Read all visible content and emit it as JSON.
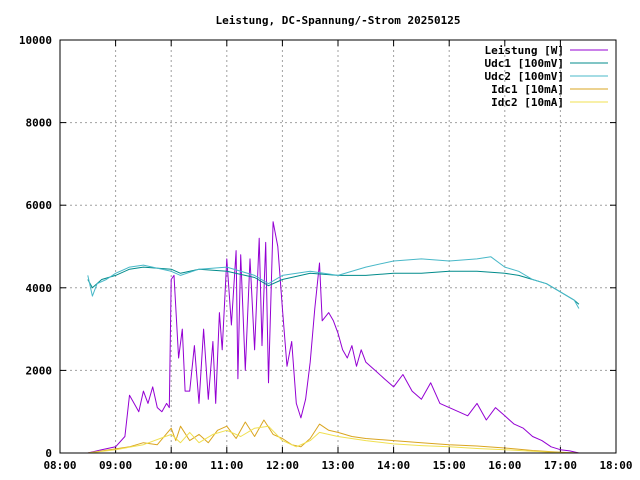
{
  "chart_data": {
    "type": "line",
    "title": "Leistung, DC-Spannung/-Strom 20250125",
    "xlabel": "",
    "ylabel": "",
    "xlim": [
      "08:00",
      "18:00"
    ],
    "ylim": [
      0,
      10000
    ],
    "x_ticks": [
      "08:00",
      "09:00",
      "10:00",
      "11:00",
      "12:00",
      "13:00",
      "14:00",
      "15:00",
      "16:00",
      "17:00",
      "18:00"
    ],
    "y_ticks": [
      0,
      2000,
      4000,
      6000,
      8000,
      10000
    ],
    "grid": true,
    "legend_position": "top-right",
    "series": [
      {
        "name": "Leistung [W]",
        "color": "#9400d3",
        "points": [
          [
            "08:30",
            0
          ],
          [
            "08:45",
            80
          ],
          [
            "09:00",
            150
          ],
          [
            "09:10",
            400
          ],
          [
            "09:15",
            1400
          ],
          [
            "09:20",
            1200
          ],
          [
            "09:25",
            1000
          ],
          [
            "09:30",
            1500
          ],
          [
            "09:35",
            1200
          ],
          [
            "09:40",
            1600
          ],
          [
            "09:45",
            1100
          ],
          [
            "09:50",
            1000
          ],
          [
            "09:55",
            1200
          ],
          [
            "09:58",
            1100
          ],
          [
            "10:00",
            4200
          ],
          [
            "10:03",
            4300
          ],
          [
            "10:08",
            2300
          ],
          [
            "10:12",
            3000
          ],
          [
            "10:15",
            1500
          ],
          [
            "10:20",
            1500
          ],
          [
            "10:25",
            2600
          ],
          [
            "10:30",
            1200
          ],
          [
            "10:35",
            3000
          ],
          [
            "10:40",
            1300
          ],
          [
            "10:45",
            2700
          ],
          [
            "10:48",
            1200
          ],
          [
            "10:52",
            3400
          ],
          [
            "10:55",
            2500
          ],
          [
            "11:00",
            4700
          ],
          [
            "11:05",
            3100
          ],
          [
            "11:10",
            4900
          ],
          [
            "11:12",
            1800
          ],
          [
            "11:15",
            4800
          ],
          [
            "11:20",
            2000
          ],
          [
            "11:25",
            4700
          ],
          [
            "11:30",
            2500
          ],
          [
            "11:35",
            5200
          ],
          [
            "11:38",
            2600
          ],
          [
            "11:42",
            5100
          ],
          [
            "11:45",
            1700
          ],
          [
            "11:50",
            5600
          ],
          [
            "11:55",
            5000
          ],
          [
            "12:00",
            3500
          ],
          [
            "12:05",
            2100
          ],
          [
            "12:10",
            2700
          ],
          [
            "12:15",
            1200
          ],
          [
            "12:20",
            850
          ],
          [
            "12:25",
            1300
          ],
          [
            "12:30",
            2200
          ],
          [
            "12:35",
            3500
          ],
          [
            "12:40",
            4600
          ],
          [
            "12:43",
            3200
          ],
          [
            "12:50",
            3400
          ],
          [
            "12:55",
            3200
          ],
          [
            "13:00",
            2900
          ],
          [
            "13:05",
            2500
          ],
          [
            "13:10",
            2300
          ],
          [
            "13:15",
            2600
          ],
          [
            "13:20",
            2100
          ],
          [
            "13:25",
            2500
          ],
          [
            "13:30",
            2200
          ],
          [
            "13:40",
            2000
          ],
          [
            "13:50",
            1800
          ],
          [
            "14:00",
            1600
          ],
          [
            "14:10",
            1900
          ],
          [
            "14:20",
            1500
          ],
          [
            "14:30",
            1300
          ],
          [
            "14:40",
            1700
          ],
          [
            "14:50",
            1200
          ],
          [
            "15:00",
            1100
          ],
          [
            "15:10",
            1000
          ],
          [
            "15:20",
            900
          ],
          [
            "15:30",
            1200
          ],
          [
            "15:40",
            800
          ],
          [
            "15:50",
            1100
          ],
          [
            "16:00",
            900
          ],
          [
            "16:10",
            700
          ],
          [
            "16:20",
            600
          ],
          [
            "16:30",
            400
          ],
          [
            "16:40",
            300
          ],
          [
            "16:50",
            150
          ],
          [
            "17:00",
            80
          ],
          [
            "17:10",
            50
          ],
          [
            "17:20",
            0
          ]
        ]
      },
      {
        "name": "Udc1 [100mV]",
        "color": "#008b8b",
        "points": [
          [
            "08:30",
            4200
          ],
          [
            "08:35",
            4000
          ],
          [
            "08:45",
            4200
          ],
          [
            "09:00",
            4300
          ],
          [
            "09:15",
            4450
          ],
          [
            "09:30",
            4500
          ],
          [
            "10:00",
            4450
          ],
          [
            "10:10",
            4350
          ],
          [
            "10:30",
            4450
          ],
          [
            "11:00",
            4400
          ],
          [
            "11:30",
            4250
          ],
          [
            "11:45",
            4050
          ],
          [
            "12:00",
            4200
          ],
          [
            "12:30",
            4350
          ],
          [
            "13:00",
            4300
          ],
          [
            "13:30",
            4300
          ],
          [
            "14:00",
            4350
          ],
          [
            "14:30",
            4350
          ],
          [
            "15:00",
            4400
          ],
          [
            "15:30",
            4400
          ],
          [
            "16:00",
            4350
          ],
          [
            "16:15",
            4300
          ],
          [
            "16:30",
            4200
          ],
          [
            "16:45",
            4100
          ],
          [
            "17:00",
            3900
          ],
          [
            "17:15",
            3700
          ],
          [
            "17:20",
            3600
          ]
        ]
      },
      {
        "name": "Udc2 [100mV]",
        "color": "#48b8c8",
        "points": [
          [
            "08:30",
            4300
          ],
          [
            "08:35",
            3800
          ],
          [
            "08:40",
            4100
          ],
          [
            "08:50",
            4200
          ],
          [
            "09:00",
            4350
          ],
          [
            "09:15",
            4500
          ],
          [
            "09:30",
            4550
          ],
          [
            "10:00",
            4400
          ],
          [
            "10:10",
            4300
          ],
          [
            "10:30",
            4450
          ],
          [
            "11:00",
            4500
          ],
          [
            "11:30",
            4300
          ],
          [
            "11:45",
            4100
          ],
          [
            "12:00",
            4300
          ],
          [
            "12:30",
            4400
          ],
          [
            "13:00",
            4300
          ],
          [
            "13:30",
            4500
          ],
          [
            "14:00",
            4650
          ],
          [
            "14:30",
            4700
          ],
          [
            "15:00",
            4650
          ],
          [
            "15:30",
            4700
          ],
          [
            "15:45",
            4750
          ],
          [
            "16:00",
            4500
          ],
          [
            "16:15",
            4400
          ],
          [
            "16:30",
            4200
          ],
          [
            "16:45",
            4100
          ],
          [
            "17:00",
            3900
          ],
          [
            "17:15",
            3700
          ],
          [
            "17:20",
            3500
          ]
        ]
      },
      {
        "name": "Idc1 [10mA]",
        "color": "#daa520",
        "points": [
          [
            "08:30",
            0
          ],
          [
            "09:00",
            100
          ],
          [
            "09:15",
            150
          ],
          [
            "09:30",
            250
          ],
          [
            "09:45",
            200
          ],
          [
            "10:00",
            600
          ],
          [
            "10:05",
            300
          ],
          [
            "10:10",
            650
          ],
          [
            "10:20",
            300
          ],
          [
            "10:30",
            450
          ],
          [
            "10:40",
            250
          ],
          [
            "10:50",
            550
          ],
          [
            "11:00",
            650
          ],
          [
            "11:10",
            350
          ],
          [
            "11:20",
            750
          ],
          [
            "11:30",
            400
          ],
          [
            "11:40",
            800
          ],
          [
            "11:50",
            450
          ],
          [
            "12:00",
            350
          ],
          [
            "12:10",
            200
          ],
          [
            "12:20",
            150
          ],
          [
            "12:30",
            350
          ],
          [
            "12:40",
            700
          ],
          [
            "12:50",
            550
          ],
          [
            "13:00",
            500
          ],
          [
            "13:15",
            400
          ],
          [
            "13:30",
            350
          ],
          [
            "14:00",
            300
          ],
          [
            "14:30",
            250
          ],
          [
            "15:00",
            200
          ],
          [
            "15:30",
            170
          ],
          [
            "16:00",
            120
          ],
          [
            "16:30",
            60
          ],
          [
            "17:00",
            20
          ],
          [
            "17:20",
            0
          ]
        ]
      },
      {
        "name": "Idc2 [10mA]",
        "color": "#f0e050",
        "points": [
          [
            "08:30",
            0
          ],
          [
            "09:00",
            80
          ],
          [
            "09:30",
            200
          ],
          [
            "10:00",
            450
          ],
          [
            "10:10",
            250
          ],
          [
            "10:20",
            500
          ],
          [
            "10:30",
            250
          ],
          [
            "10:45",
            450
          ],
          [
            "11:00",
            550
          ],
          [
            "11:15",
            400
          ],
          [
            "11:30",
            600
          ],
          [
            "11:45",
            650
          ],
          [
            "12:00",
            300
          ],
          [
            "12:15",
            150
          ],
          [
            "12:30",
            300
          ],
          [
            "12:40",
            500
          ],
          [
            "13:00",
            400
          ],
          [
            "13:30",
            300
          ],
          [
            "14:00",
            220
          ],
          [
            "14:30",
            180
          ],
          [
            "15:00",
            150
          ],
          [
            "15:30",
            110
          ],
          [
            "16:00",
            80
          ],
          [
            "16:30",
            40
          ],
          [
            "17:00",
            10
          ],
          [
            "17:20",
            0
          ]
        ]
      }
    ]
  }
}
